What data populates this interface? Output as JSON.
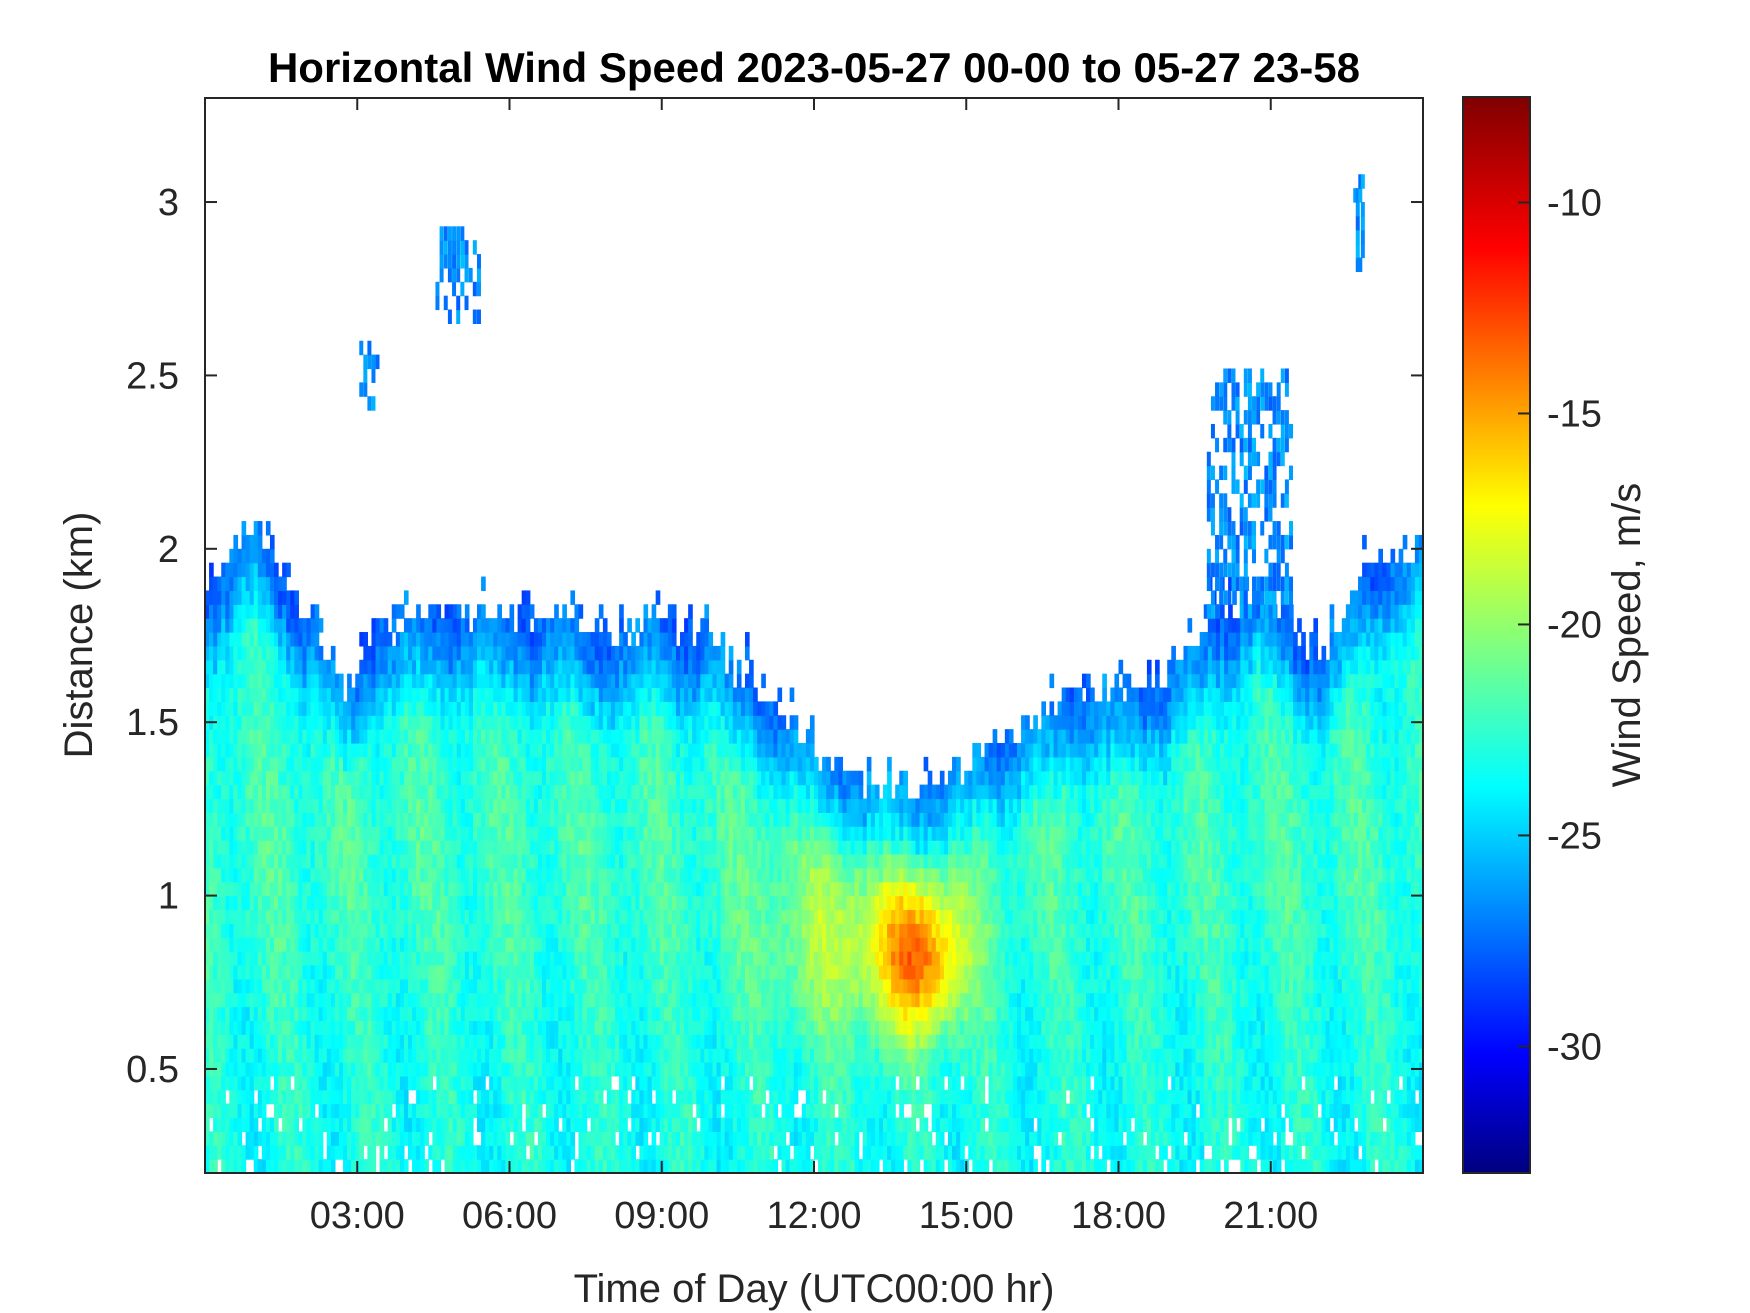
{
  "chart_data": {
    "type": "heatmap",
    "title": "Horizontal Wind Speed 2023-05-27 00-00 to 05-27 23-58",
    "xlabel": "Time of Day (UTC00:00 hr)",
    "ylabel": "Distance (km)",
    "xlim": [
      0,
      24
    ],
    "ylim": [
      0.2,
      3.3
    ],
    "x_ticks": [
      {
        "value": 3,
        "label": "03:00"
      },
      {
        "value": 6,
        "label": "06:00"
      },
      {
        "value": 9,
        "label": "09:00"
      },
      {
        "value": 12,
        "label": "12:00"
      },
      {
        "value": 15,
        "label": "15:00"
      },
      {
        "value": 18,
        "label": "18:00"
      },
      {
        "value": 21,
        "label": "21:00"
      }
    ],
    "y_ticks": [
      {
        "value": 0.5,
        "label": "0.5"
      },
      {
        "value": 1,
        "label": "1"
      },
      {
        "value": 1.5,
        "label": "1.5"
      },
      {
        "value": 2,
        "label": "2"
      },
      {
        "value": 2.5,
        "label": "2.5"
      },
      {
        "value": 3,
        "label": "3"
      }
    ],
    "colorbar": {
      "label": "Wind Speed, m/s",
      "clim": [
        -33,
        -7.5
      ],
      "colormap": "jet",
      "ticks": [
        {
          "value": -30,
          "label": "-30"
        },
        {
          "value": -25,
          "label": "-25"
        },
        {
          "value": -20,
          "label": "-20"
        },
        {
          "value": -15,
          "label": "-15"
        },
        {
          "value": -10,
          "label": "-10"
        }
      ]
    },
    "data_top_profile": {
      "x": [
        0,
        0.5,
        1,
        2,
        2.8,
        3.3,
        4.5,
        6,
        8,
        9,
        10,
        11,
        12,
        13,
        14,
        15,
        16,
        17,
        18,
        19,
        19.5,
        20,
        21,
        22,
        23,
        24
      ],
      "top_km": [
        1.85,
        1.95,
        2.05,
        1.8,
        1.58,
        1.72,
        1.8,
        1.78,
        1.72,
        1.75,
        1.7,
        1.55,
        1.4,
        1.3,
        1.25,
        1.35,
        1.45,
        1.55,
        1.55,
        1.6,
        1.7,
        1.8,
        1.85,
        1.65,
        1.95,
        2.0
      ]
    },
    "upper_echoes": [
      {
        "x_range": [
          19.7,
          21.4
        ],
        "y_range": [
          1.8,
          2.5
        ]
      },
      {
        "x_range": [
          4.5,
          5.4
        ],
        "y_range": [
          2.65,
          2.9
        ]
      },
      {
        "x_range": [
          3.0,
          3.4
        ],
        "y_range": [
          2.4,
          2.6
        ]
      },
      {
        "x_range": [
          22.6,
          22.8
        ],
        "y_range": [
          2.8,
          3.05
        ]
      }
    ],
    "typical_values": {
      "near_top_m_s": -26,
      "mid_layer_m_s": -22,
      "core_13_to_15h_0p6_to_0p9km_m_s": -14,
      "lower_layer_m_s": -23
    }
  }
}
